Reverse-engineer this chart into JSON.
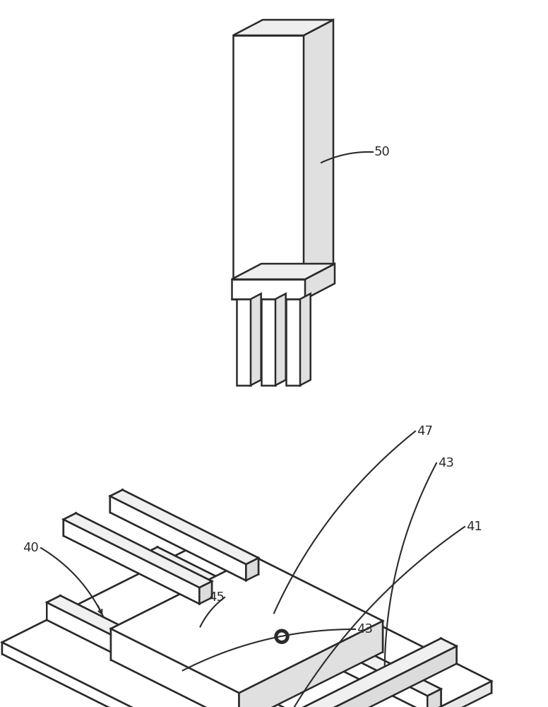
{
  "bg_color": "#ffffff",
  "line_color": "#2a2a2a",
  "lw": 1.8,
  "font_size": 13,
  "fig_width": 7.76,
  "fig_height": 10.0,
  "dpi": 100
}
